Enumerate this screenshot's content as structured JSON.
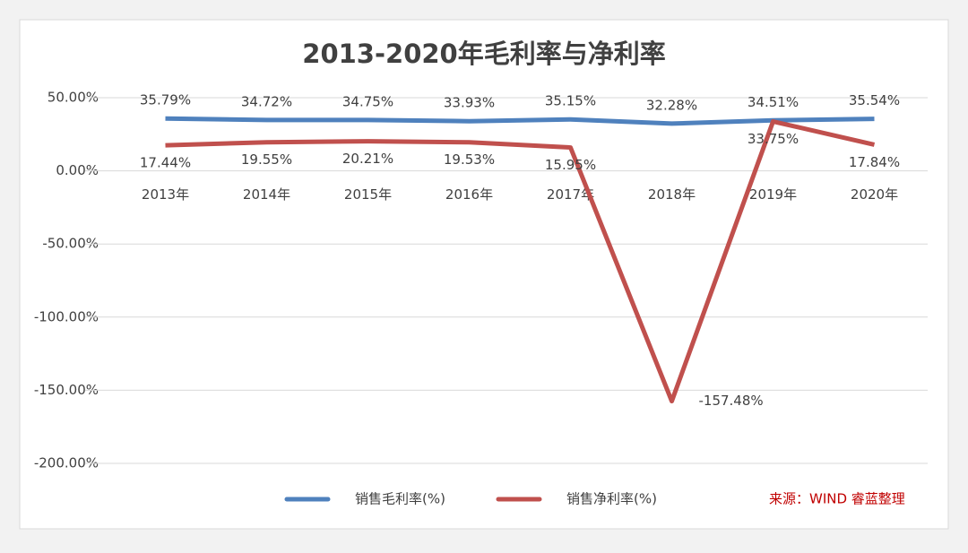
{
  "chart_data": {
    "type": "line",
    "title": "2013-2020年毛利率与净利率",
    "categories": [
      "2013年",
      "2014年",
      "2015年",
      "2016年",
      "2017年",
      "2018年",
      "2019年",
      "2020年"
    ],
    "series": [
      {
        "name": "销售毛利率(%)",
        "color": "#4f81bd",
        "values": [
          35.79,
          34.72,
          34.75,
          33.93,
          35.15,
          32.28,
          34.51,
          35.54
        ],
        "value_labels": [
          "35.79%",
          "34.72%",
          "34.75%",
          "33.93%",
          "35.15%",
          "32.28%",
          "34.51%",
          "35.54%"
        ]
      },
      {
        "name": "销售净利率(%)",
        "color": "#c0504d",
        "values": [
          17.44,
          19.55,
          20.21,
          19.53,
          15.95,
          -157.48,
          33.75,
          17.84
        ],
        "value_labels": [
          "17.44%",
          "19.55%",
          "20.21%",
          "19.53%",
          "15.95%",
          "-157.48%",
          "33.75%",
          "17.84%"
        ]
      }
    ],
    "ylim": [
      -200,
      50
    ],
    "yticks": [
      {
        "value": -200,
        "label": "-200.00%"
      },
      {
        "value": -150,
        "label": "-150.00%"
      },
      {
        "value": -100,
        "label": "-100.00%"
      },
      {
        "value": -50,
        "label": "-50.00%"
      },
      {
        "value": 0,
        "label": "0.00%"
      },
      {
        "value": 50,
        "label": "50.00%"
      }
    ],
    "grid": true,
    "annotation": "来源：WIND 睿蓝整理"
  }
}
